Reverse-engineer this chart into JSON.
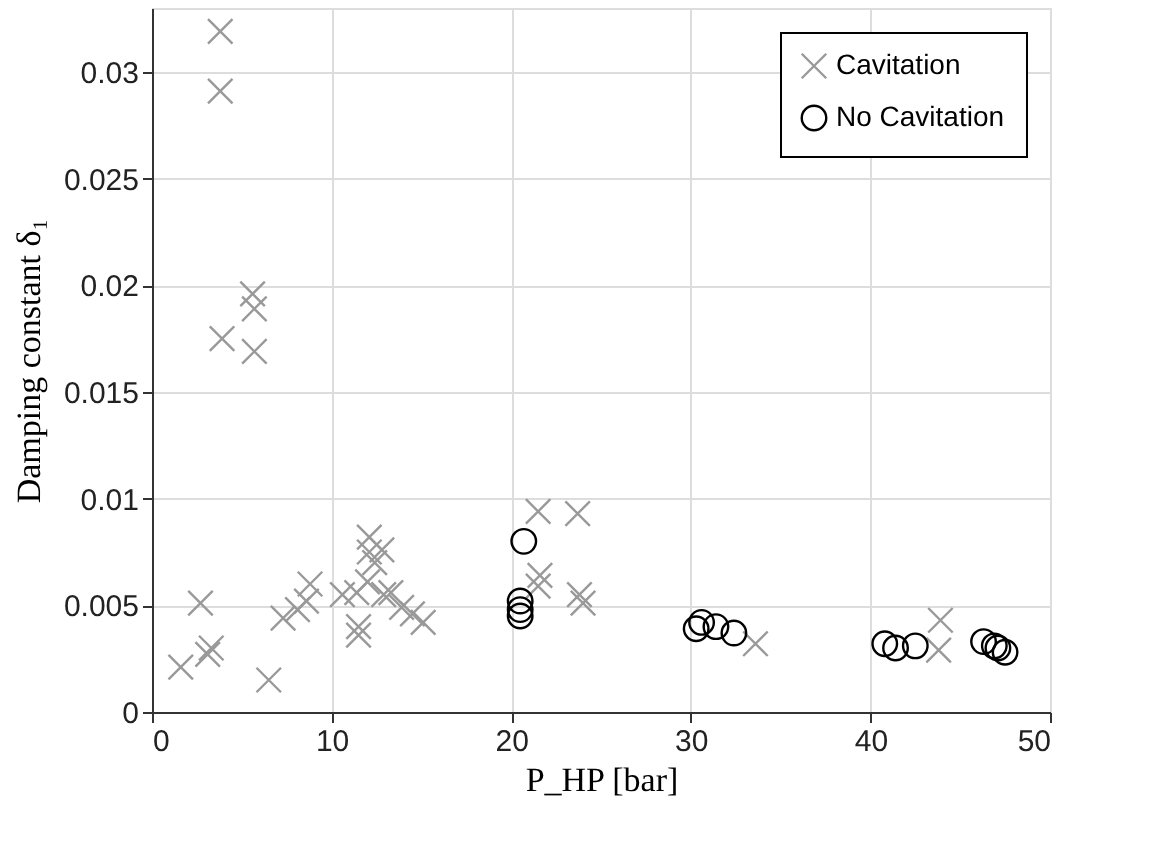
{
  "chart_data": {
    "type": "scatter",
    "xlabel": "P_HP [bar]",
    "ylabel": "Damping constant δ₁",
    "xlim": [
      0,
      50
    ],
    "xticks": [
      0,
      10,
      20,
      30,
      40,
      50
    ],
    "ylim": [
      0,
      0.033
    ],
    "yticks": [
      0,
      0.005,
      0.01,
      0.015,
      0.02,
      0.025,
      0.03
    ],
    "grid": true,
    "legend": "top right",
    "series": [
      {
        "name": "Cavitation",
        "color": "#999999",
        "marker": "cross",
        "x": [
          3.8,
          3.8,
          5.6,
          5.7,
          3.9,
          5.7,
          1.6,
          2.7,
          3.1,
          3.3,
          6.5,
          7.3,
          8.1,
          8.6,
          8.8,
          10.6,
          11.4,
          11.5,
          11.5,
          12.0,
          12.1,
          12.1,
          12.4,
          12.8,
          12.9,
          13.3,
          13.9,
          14.5,
          15.1,
          21.5,
          21.5,
          21.6,
          23.7,
          23.8,
          24.0,
          33.6,
          43.9,
          43.8
        ],
        "values": [
          0.0319,
          0.0291,
          0.0196,
          0.0189,
          0.0175,
          0.0169,
          0.0021,
          0.0051,
          0.0027,
          0.003,
          0.0015,
          0.0044,
          0.0048,
          0.0052,
          0.006,
          0.0055,
          0.0056,
          0.004,
          0.0036,
          0.0061,
          0.0082,
          0.0075,
          0.007,
          0.0076,
          0.0055,
          0.0056,
          0.0049,
          0.0046,
          0.0042,
          0.0094,
          0.0059,
          0.0064,
          0.0093,
          0.0055,
          0.0051,
          0.0032,
          0.0043,
          0.0029
        ]
      },
      {
        "name": "No Cavitation",
        "color": "#000000",
        "marker": "circle",
        "x": [
          20.7,
          20.5,
          20.5,
          20.5,
          30.6,
          30.3,
          31.4,
          32.4,
          40.8,
          41.4,
          42.5,
          46.3,
          46.9,
          47.5,
          47.1
        ],
        "values": [
          0.008,
          0.0052,
          0.0048,
          0.0045,
          0.0042,
          0.0039,
          0.004,
          0.0037,
          0.0032,
          0.003,
          0.0031,
          0.0033,
          0.0031,
          0.0028,
          0.003
        ]
      }
    ]
  }
}
